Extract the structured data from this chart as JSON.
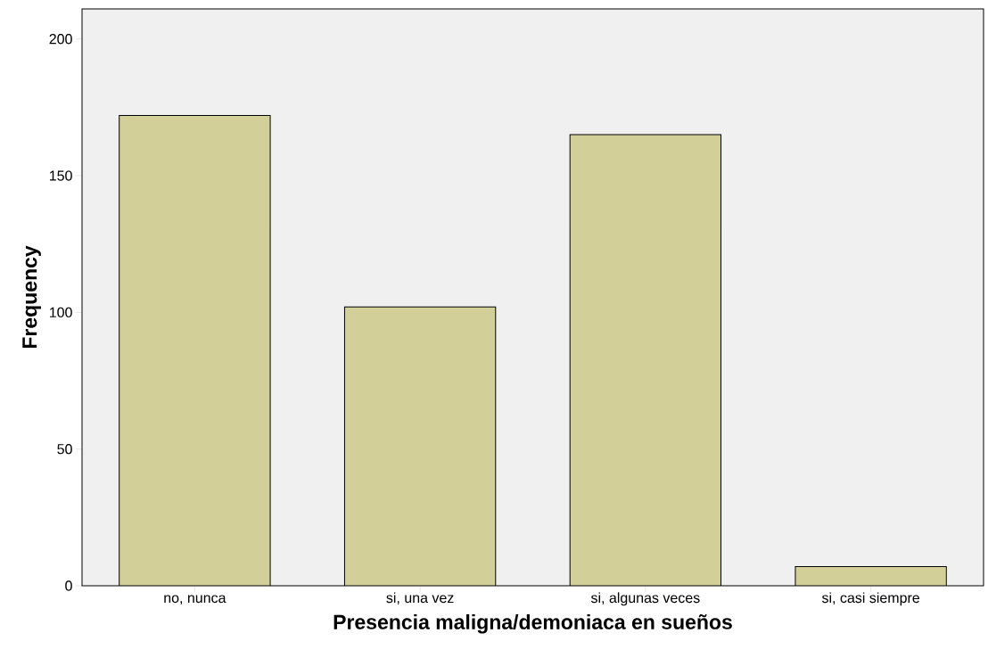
{
  "chart_data": {
    "type": "bar",
    "xlabel": "Presencia maligna/demoniaca en sueños",
    "ylabel": "Frequency",
    "categories": [
      "no, nunca",
      "si, una vez",
      "si, algunas veces",
      "si, casi siempre"
    ],
    "values": [
      172,
      102,
      165,
      7
    ],
    "color": "#d3cf98",
    "ylim": [
      0,
      211
    ],
    "yticks": [
      0,
      50,
      100,
      150,
      200
    ],
    "grid": false
  }
}
